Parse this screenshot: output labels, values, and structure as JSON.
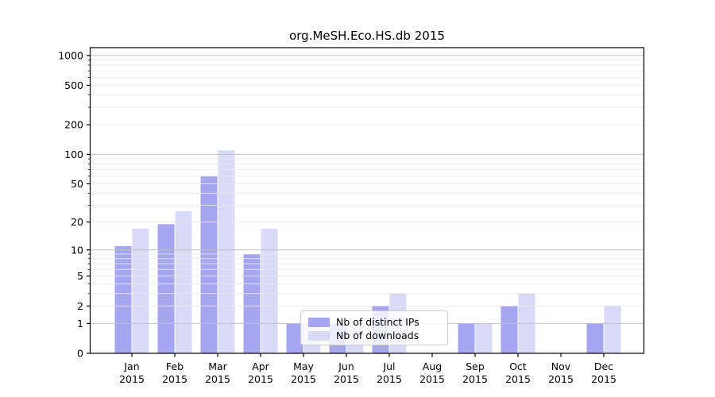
{
  "title": "org.MeSH.Eco.HS.db 2015",
  "chart_data": {
    "type": "bar",
    "title": "org.MeSH.Eco.HS.db 2015",
    "xlabel": "",
    "ylabel": "",
    "categories": [
      "Jan 2015",
      "Feb 2015",
      "Mar 2015",
      "Apr 2015",
      "May 2015",
      "Jun 2015",
      "Jul 2015",
      "Aug 2015",
      "Sep 2015",
      "Oct 2015",
      "Nov 2015",
      "Dec 2015"
    ],
    "series": [
      {
        "name": "Nb of distinct IPs",
        "color": "#a5a5f0",
        "values": [
          11,
          19,
          60,
          9,
          1,
          1,
          2,
          0,
          1,
          2,
          0,
          1
        ]
      },
      {
        "name": "Nb of downloads",
        "color": "#d9d9f8",
        "values": [
          17,
          26,
          110,
          17,
          1,
          1,
          3,
          0,
          1,
          3,
          0,
          2
        ]
      }
    ],
    "yscale": "log10(value+1)",
    "ylim": [
      0,
      1200
    ],
    "yticks": [
      0,
      1,
      2,
      5,
      10,
      20,
      50,
      100,
      200,
      500,
      1000
    ],
    "minor_ytick_decades": [
      3,
      4,
      6,
      7,
      8,
      9
    ],
    "grid": "on",
    "legend_position": "lower center",
    "colors": {
      "major_grid": "#c2c2c2",
      "minor_grid": "#e9e9e9",
      "spine": "#000000",
      "text": "#000000"
    }
  }
}
